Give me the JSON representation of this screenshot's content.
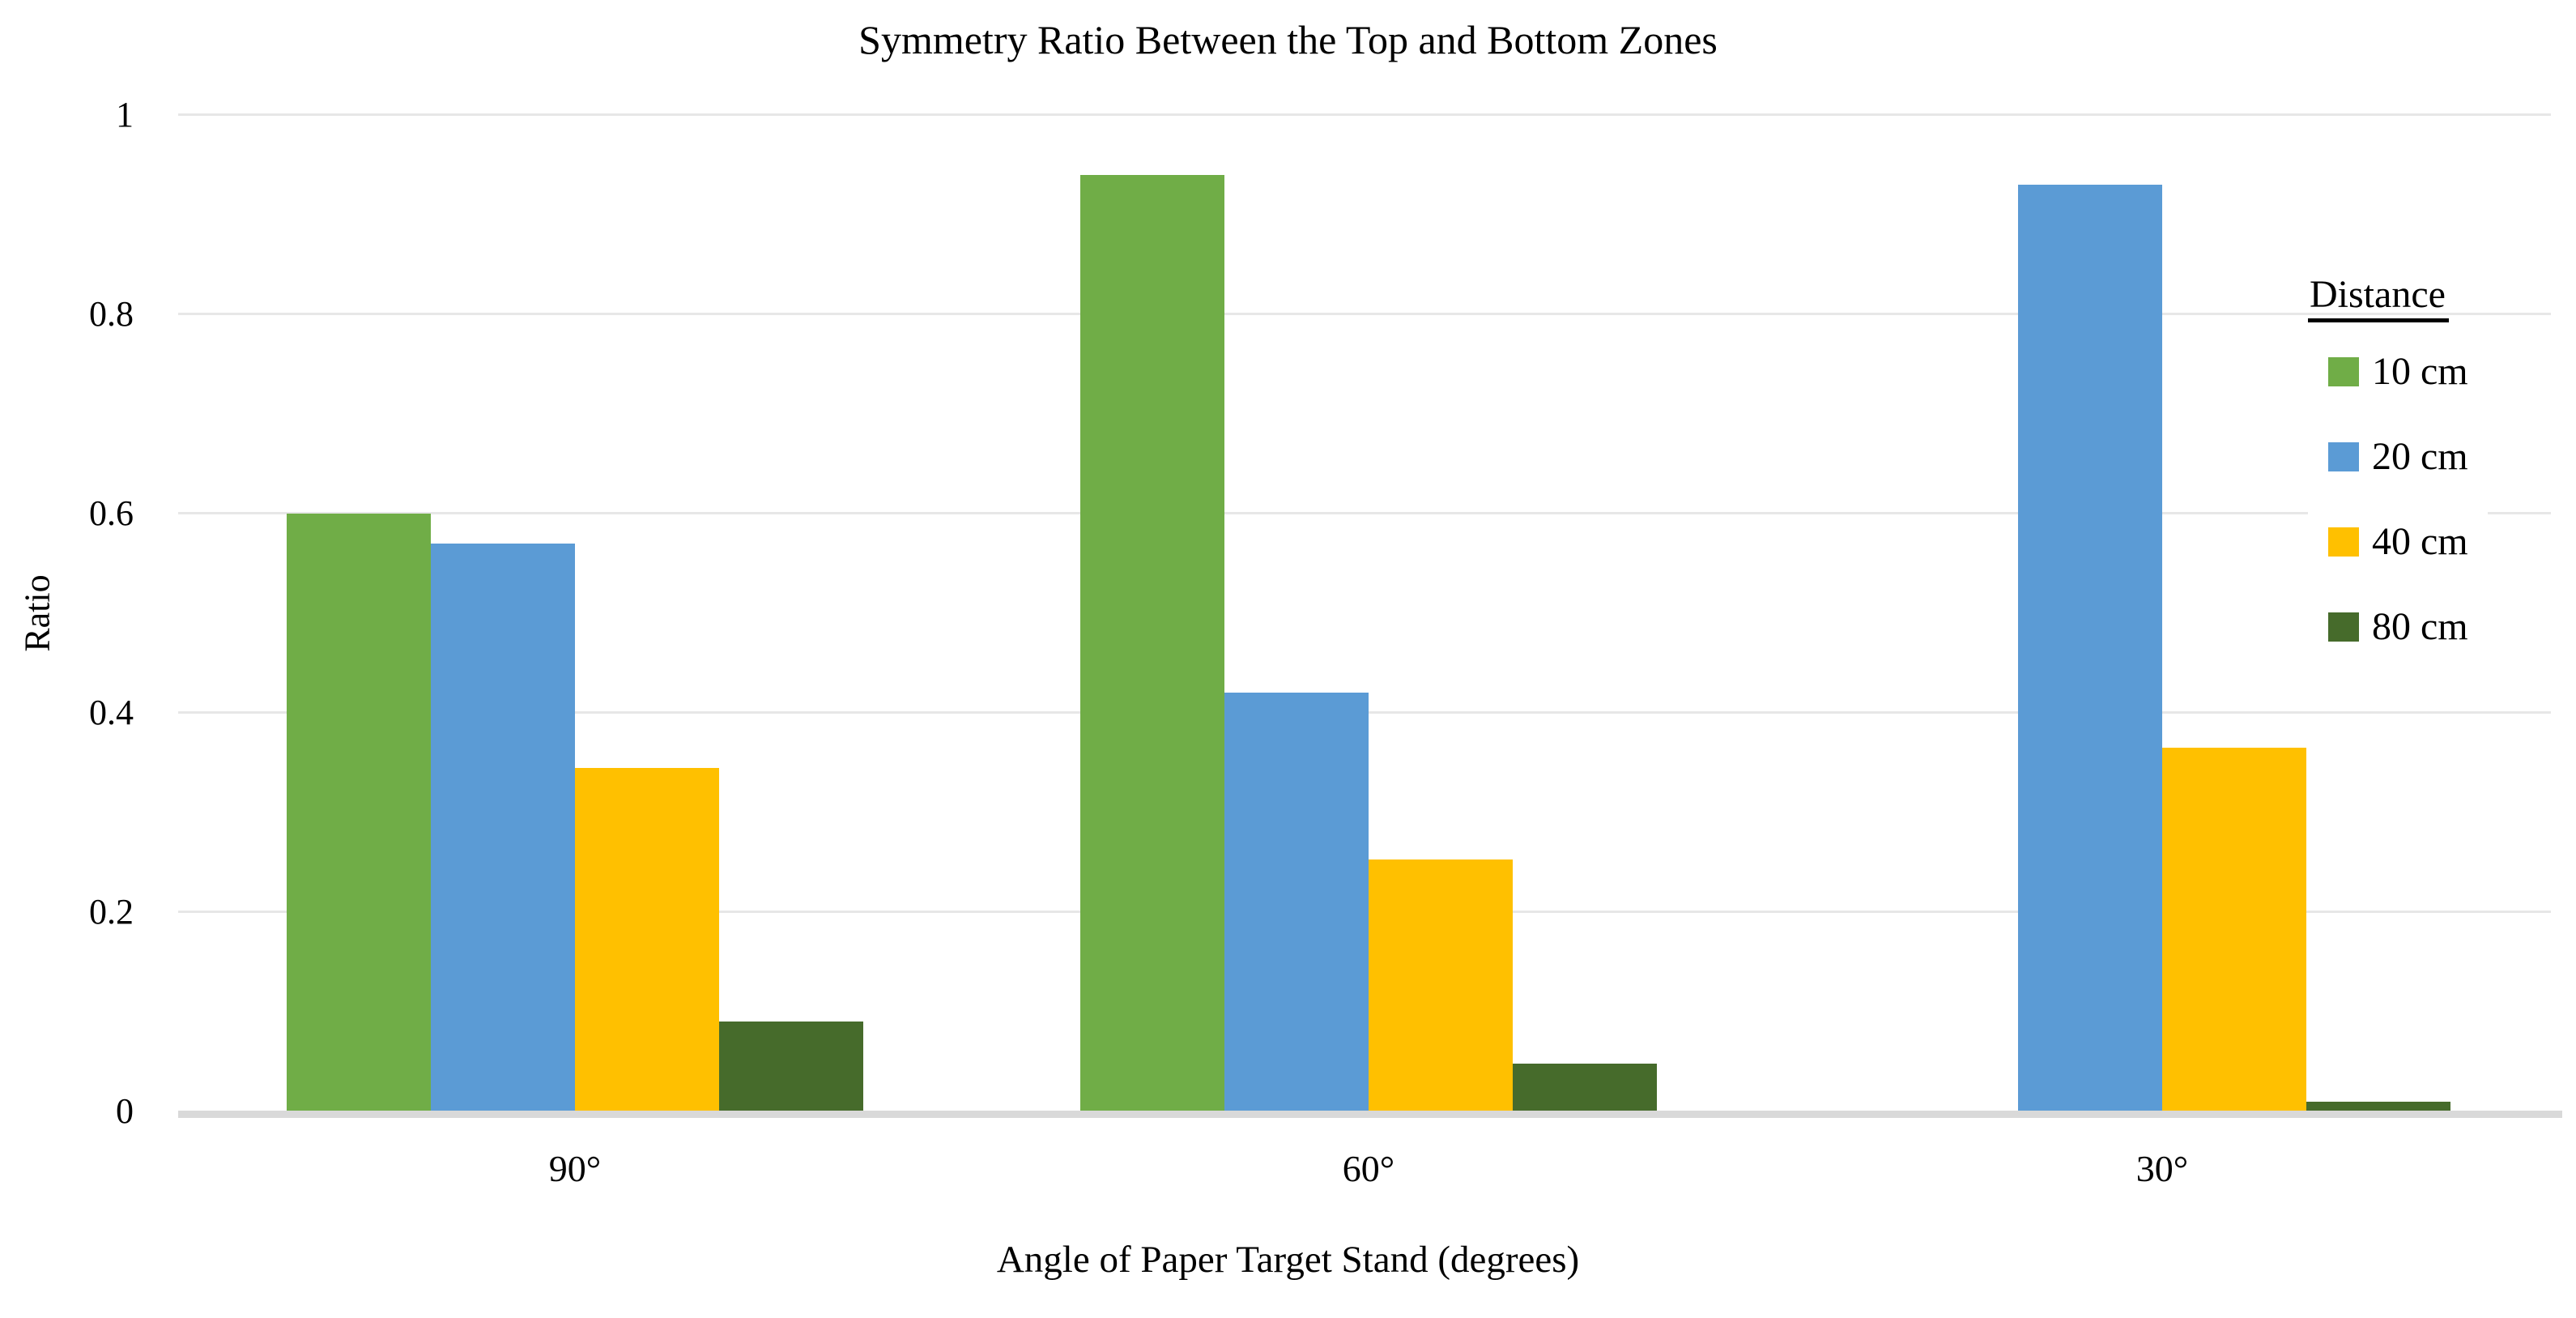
{
  "chart_data": {
    "type": "bar",
    "title": "Symmetry Ratio Between the Top and Bottom Zones",
    "xlabel": "Angle of Paper Target Stand (degrees)",
    "ylabel": "Ratio",
    "categories": [
      "90°",
      "60°",
      "30°"
    ],
    "series": [
      {
        "name": "10 cm",
        "color": "#70AD47",
        "values": [
          0.6,
          0.94,
          0
        ]
      },
      {
        "name": "20 cm",
        "color": "#5B9BD5",
        "values": [
          0.57,
          0.42,
          0.93
        ]
      },
      {
        "name": "40 cm",
        "color": "#FFC000",
        "values": [
          0.345,
          0.253,
          0.365
        ]
      },
      {
        "name": "80 cm",
        "color": "#466B2B",
        "values": [
          0.09,
          0.048,
          0.01
        ]
      }
    ],
    "ylim": [
      0,
      1
    ],
    "yticks": [
      0,
      0.2,
      0.4,
      0.6,
      0.8,
      1
    ],
    "ytick_labels": [
      "0",
      "0.2",
      "0.4",
      "0.6",
      "0.8",
      "1"
    ],
    "grid": true,
    "legend_title": "Distance",
    "legend_position": "right"
  },
  "colors": {
    "background": "#FFFFFF",
    "gridline": "#E7E7E7",
    "axis_line": "#D9D9D9",
    "text": "#000000"
  }
}
